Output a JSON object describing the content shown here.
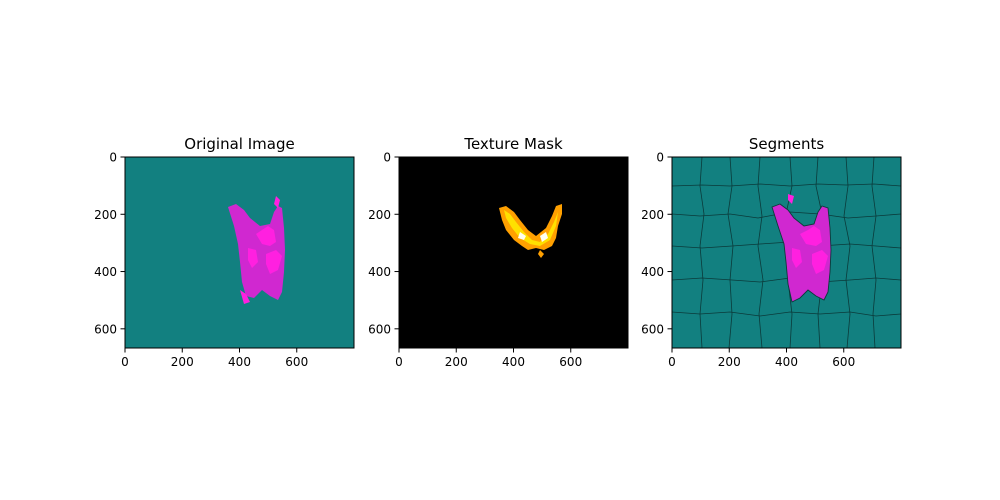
{
  "chart_data": [
    {
      "type": "image",
      "title": "Original Image",
      "xlabel": "",
      "ylabel": "",
      "xlim": [
        0,
        800
      ],
      "ylim": [
        667,
        0
      ],
      "x_ticks": [
        0,
        200,
        400,
        600
      ],
      "y_ticks": [
        0,
        200,
        400,
        600
      ],
      "grid": false,
      "colors": {
        "background": "#128080",
        "object": "#d028d0",
        "object_accent": "#ff20e0"
      }
    },
    {
      "type": "image",
      "title": "Texture Mask",
      "xlabel": "",
      "ylabel": "",
      "xlim": [
        0,
        800
      ],
      "ylim": [
        667,
        0
      ],
      "x_ticks": [
        0,
        200,
        400,
        600
      ],
      "y_ticks": [
        0,
        200,
        400,
        600
      ],
      "grid": false,
      "colors": {
        "background": "#000000",
        "mask_outer": "#ffa000",
        "mask_inner": "#ffe000",
        "mask_hot": "#fffff0"
      }
    },
    {
      "type": "image",
      "title": "Segments",
      "xlabel": "",
      "ylabel": "",
      "xlim": [
        0,
        800
      ],
      "ylim": [
        667,
        0
      ],
      "x_ticks": [
        0,
        200,
        400,
        600
      ],
      "y_ticks": [
        0,
        200,
        400,
        600
      ],
      "grid": false,
      "colors": {
        "background": "#128080",
        "boundary": "#0b3a3a",
        "object": "#d028d0",
        "object_accent": "#ff20e0"
      }
    }
  ]
}
